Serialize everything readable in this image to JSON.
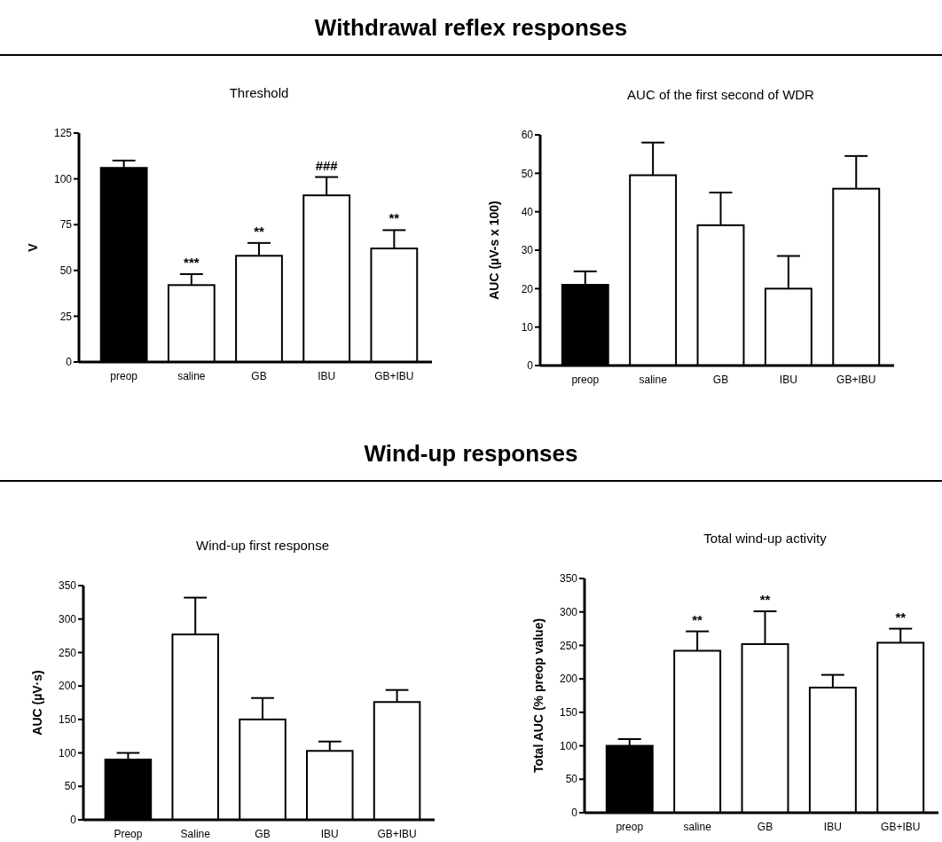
{
  "chart_data": [
    {
      "type": "bar",
      "title": "Threshold",
      "ylabel": "V",
      "categories": [
        "preop",
        "saline",
        "GB",
        "IBU",
        "GB+IBU"
      ],
      "values": [
        106,
        42,
        58,
        91,
        62
      ],
      "colors": [
        "#000000",
        "#ffffff",
        "#ffffff",
        "#ffffff",
        "#ffffff"
      ],
      "errors": [
        [
          106,
          110
        ],
        [
          42,
          48
        ],
        [
          58,
          65
        ],
        [
          91,
          101
        ],
        [
          62,
          72
        ]
      ],
      "ylim": [
        0,
        125
      ],
      "yticks": [
        0,
        25,
        50,
        75,
        100,
        125
      ],
      "annotations": [
        "Withdrawal reflex responses",
        {
          "text": "***",
          "x": "saline",
          "y": 48
        },
        {
          "text": "**",
          "x": "GB",
          "y": 65
        },
        {
          "text": "###",
          "x": "IBU",
          "y": 101
        },
        {
          "text": "**",
          "x": "GB+IBU",
          "y": 72
        }
      ]
    },
    {
      "type": "bar",
      "title": "AUC of the first second of WDR",
      "ylabel": "AUC (µV-s x 100)",
      "categories": [
        "preop",
        "saline",
        "GB",
        "IBU",
        "GB+IBU"
      ],
      "values": [
        21,
        49.5,
        36.5,
        20,
        46
      ],
      "colors": [
        "#000000",
        "#ffffff",
        "#ffffff",
        "#ffffff",
        "#ffffff"
      ],
      "errors": [
        [
          21,
          24.5
        ],
        [
          49.5,
          58
        ],
        [
          36.5,
          45
        ],
        [
          20,
          28.5
        ],
        [
          46,
          54.5
        ]
      ],
      "ylim": [
        0,
        60
      ],
      "yticks": [
        0,
        10,
        20,
        30,
        40,
        50,
        60
      ]
    },
    {
      "type": "bar",
      "title": "Wind-up first response",
      "ylabel": "AUC (µV·s)",
      "categories": [
        "Preop",
        "Saline",
        "GB",
        "IBU",
        "GB+IBU"
      ],
      "values": [
        90,
        277,
        150,
        103,
        176
      ],
      "colors": [
        "#000000",
        "#ffffff",
        "#ffffff",
        "#ffffff",
        "#ffffff"
      ],
      "errors": [
        [
          90,
          100
        ],
        [
          277,
          332
        ],
        [
          150,
          182
        ],
        [
          103,
          117
        ],
        [
          176,
          194
        ]
      ],
      "ylim": [
        0,
        350
      ],
      "yticks": [
        0,
        50,
        100,
        150,
        200,
        250,
        300,
        350
      ],
      "annotations": [
        "Wind-up responses"
      ]
    },
    {
      "type": "bar",
      "title": "Total wind-up activity",
      "ylabel": "Total AUC (% preop value)",
      "categories": [
        "preop",
        "saline",
        "GB",
        "IBU",
        "GB+IBU"
      ],
      "values": [
        100,
        242,
        252,
        187,
        254
      ],
      "colors": [
        "#000000",
        "#ffffff",
        "#ffffff",
        "#ffffff",
        "#ffffff"
      ],
      "errors": [
        [
          100,
          110
        ],
        [
          242,
          271
        ],
        [
          252,
          301
        ],
        [
          187,
          206
        ],
        [
          254,
          275
        ]
      ],
      "ylim": [
        0,
        350
      ],
      "yticks": [
        0,
        50,
        100,
        150,
        200,
        250,
        300,
        350
      ],
      "annotations": [
        {
          "text": "**",
          "x": "saline",
          "y": 271
        },
        {
          "text": "**",
          "x": "GB",
          "y": 301
        },
        {
          "text": "**",
          "x": "GB+IBU",
          "y": 275
        }
      ]
    }
  ]
}
